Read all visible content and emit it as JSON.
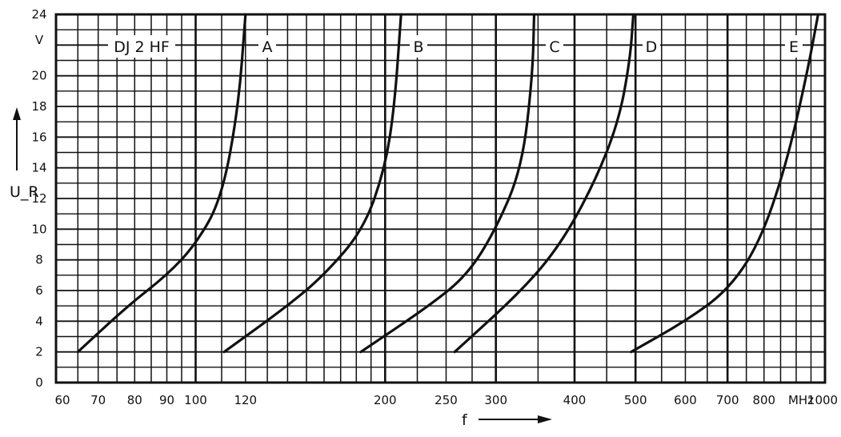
{
  "chart_data": {
    "type": "line",
    "title": "",
    "xlabel": "f",
    "ylabel": "U_R",
    "x_scale": "log",
    "xlim": [
      60,
      1000
    ],
    "ylim": [
      0,
      24
    ],
    "grid": true,
    "x_ticks": [
      60,
      70,
      80,
      90,
      100,
      120,
      200,
      250,
      300,
      400,
      500,
      600,
      700,
      800,
      1000
    ],
    "x_tick_labels": [
      "60",
      "70",
      "80",
      "90",
      "100",
      "120",
      "200",
      "250",
      "300",
      "400",
      "500",
      "600",
      "700",
      "800",
      "1000"
    ],
    "x_unit": "MHz",
    "y_ticks": [
      0,
      2,
      4,
      6,
      8,
      10,
      12,
      14,
      16,
      18,
      20,
      24
    ],
    "y_tick_labels": [
      "0",
      "2",
      "4",
      "6",
      "8",
      "10",
      "12",
      "14",
      "16",
      "18",
      "20",
      "24"
    ],
    "y_unit": "V",
    "series": [
      {
        "name": "DJ 2 HF",
        "x": [
          65,
          78,
          90,
          100,
          110,
          117,
          120
        ],
        "y": [
          2,
          5,
          7,
          9,
          12,
          18,
          24
        ]
      },
      {
        "name": "A",
        "x": [
          111,
          140,
          160,
          185,
          200,
          207,
          212
        ],
        "y": [
          2,
          5,
          7,
          10,
          14,
          18,
          24
        ]
      },
      {
        "name": "B",
        "x": [
          183,
          235,
          270,
          300,
          330,
          343,
          345
        ],
        "y": [
          2,
          5,
          7,
          10,
          14,
          20,
          24
        ]
      },
      {
        "name": "C",
        "x": [
          258,
          330,
          380,
          430,
          470,
          490,
          496
        ],
        "y": [
          2,
          6,
          9,
          13,
          17,
          21,
          24
        ]
      },
      {
        "name": "D",
        "x": [
          492,
          600,
          700,
          785,
          865,
          935,
          975
        ],
        "y": [
          2,
          4,
          6,
          9,
          14,
          20,
          24
        ]
      }
    ],
    "annotations": [
      "DJ 2 HF",
      "A",
      "B",
      "C",
      "D",
      "E"
    ]
  }
}
